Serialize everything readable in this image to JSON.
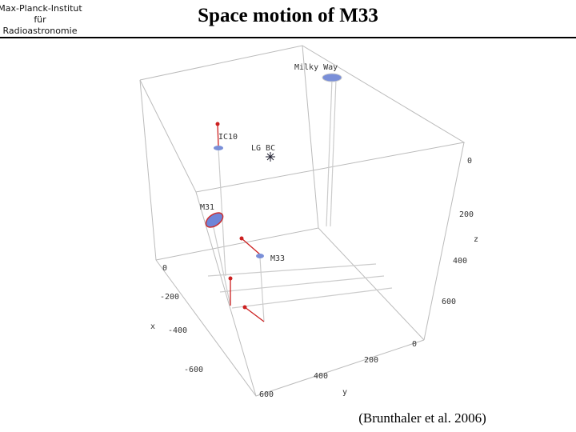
{
  "header": {
    "logo": [
      "Max-Planck-Institut",
      "für",
      "Radioastronomie"
    ],
    "title": "Space motion of M33"
  },
  "plot": {
    "objects": [
      "Milky Way",
      "IC10",
      "LG BC",
      "M31",
      "M33"
    ],
    "z_axis": {
      "label": "z",
      "ticks": [
        "0",
        "200",
        "400",
        "600"
      ]
    },
    "x_axis": {
      "label": "x",
      "ticks": [
        "0",
        "-200",
        "-400",
        "-600"
      ]
    },
    "y_axis": {
      "label": "y",
      "ticks": [
        "600",
        "400",
        "200",
        "0"
      ]
    }
  },
  "citation": "(Brunthaler et al. 2006)"
}
